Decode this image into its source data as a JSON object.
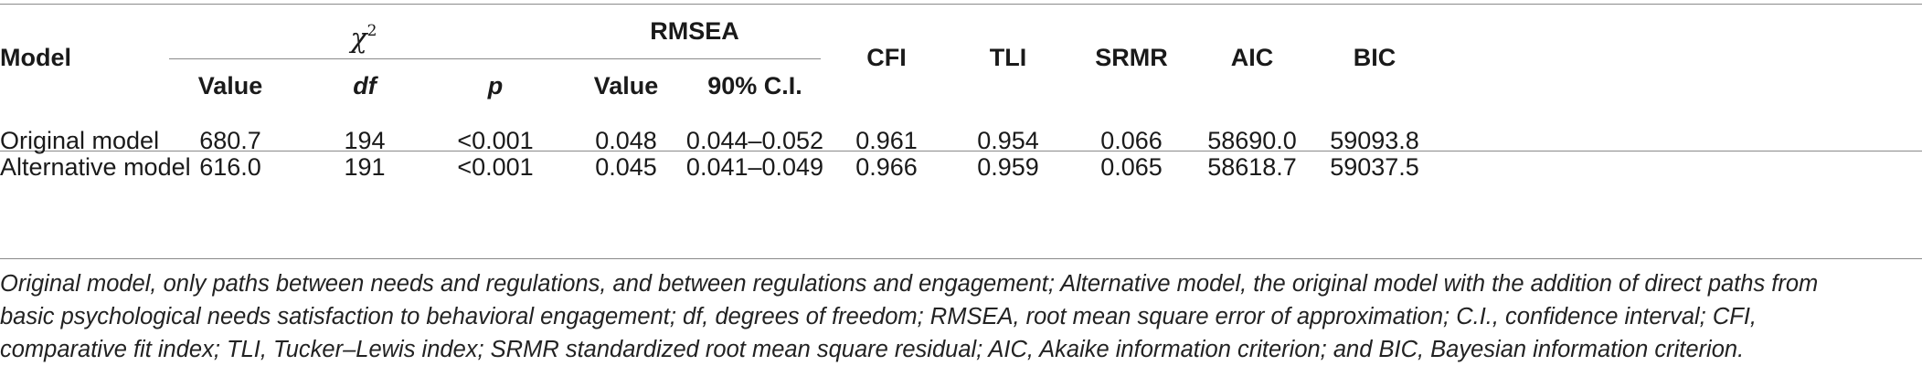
{
  "table": {
    "group_headers": {
      "model": "Model",
      "chi_symbol": "χ",
      "chi_superscript": "2",
      "rmsea": "RMSEA",
      "cfi": "CFI",
      "tli": "TLI",
      "srmr": "SRMR",
      "aic": "AIC",
      "bic": "BIC"
    },
    "sub_headers": {
      "value": "Value",
      "df": "df",
      "p": "p",
      "rmsea_value": "Value",
      "ci": "90% C.I."
    },
    "rows": [
      {
        "model": "Original model",
        "value": "680.7",
        "df": "194",
        "p": "<0.001",
        "rmsea_value": "0.048",
        "ci": "0.044–0.052",
        "cfi": "0.961",
        "tli": "0.954",
        "srmr": "0.066",
        "aic": "58690.0",
        "bic": "59093.8"
      },
      {
        "model": "Alternative model",
        "value": "616.0",
        "df": "191",
        "p": "<0.001",
        "rmsea_value": "0.045",
        "ci": "0.041–0.049",
        "cfi": "0.966",
        "tli": "0.959",
        "srmr": "0.065",
        "aic": "58618.7",
        "bic": "59037.5"
      }
    ]
  },
  "footnote": {
    "line1": "Original model, only paths between needs and regulations, and between regulations and engagement; Alternative model, the original model with the addition of direct paths from",
    "line2": "basic psychological needs satisfaction to behavioral engagement; df, degrees of freedom; RMSEA, root mean square error of approximation; C.I., confidence interval; CFI,",
    "line3": "comparative fit index; TLI, Tucker–Lewis index; SRMR standardized root mean square residual; AIC, Akaike information criterion; and BIC, Bayesian information criterion."
  }
}
